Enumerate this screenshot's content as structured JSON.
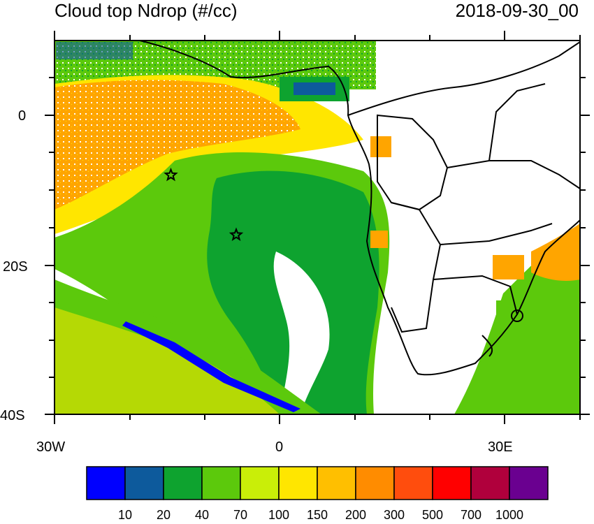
{
  "header": {
    "title": "Cloud top Ndrop (#/cc)",
    "datetime": "2018-09-30_00"
  },
  "axes": {
    "lat_labels": [
      "0",
      "20S",
      "40S"
    ],
    "lon_labels": [
      "30W",
      "0",
      "30E"
    ]
  },
  "colorbar": {
    "labels": [
      "10",
      "20",
      "40",
      "70",
      "100",
      "150",
      "200",
      "300",
      "500",
      "700",
      "1000"
    ],
    "colors": [
      "#0000ff",
      "#0d5a9c",
      "#0ea32f",
      "#5cc90c",
      "#c9ee08",
      "#ffe600",
      "#ffbf00",
      "#ff8c00",
      "#ff4d0d",
      "#ff0000",
      "#b0003c",
      "#6a0090"
    ]
  },
  "markers": [
    {
      "name": "star-marker-1",
      "lon": -14.5,
      "lat": -8
    },
    {
      "name": "star-marker-2",
      "lon": -5.8,
      "lat": -16
    }
  ],
  "map_colors": {
    "ocean_green": "#0ea32f",
    "light_green": "#5cc90c",
    "yellow": "#ffe600",
    "orange": "#ffa500",
    "land_bg": "#ffffff",
    "border": "#000000"
  }
}
